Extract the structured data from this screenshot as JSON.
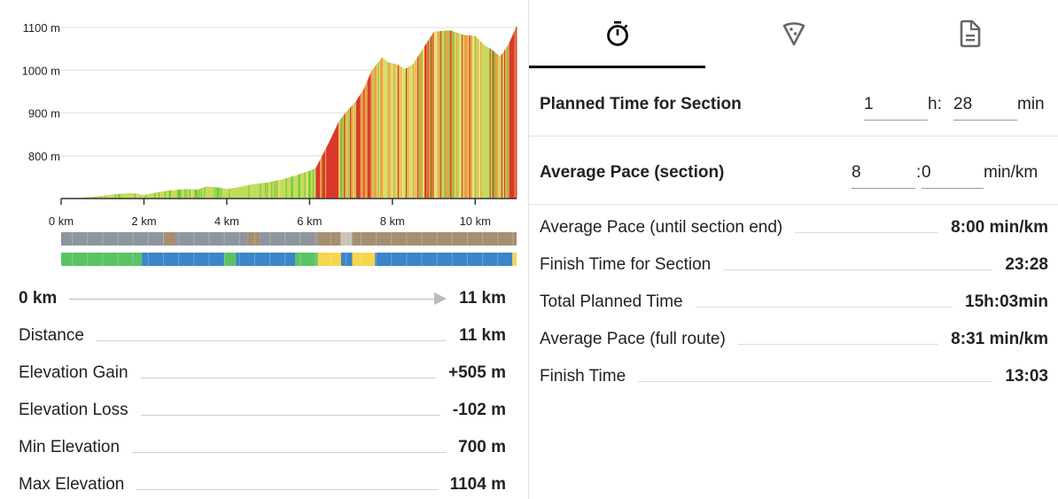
{
  "chart_data": {
    "type": "area",
    "title": "",
    "xlabel": "",
    "ylabel": "",
    "x_ticks": [
      "0 km",
      "2 km",
      "4 km",
      "6 km",
      "8 km",
      "10 km"
    ],
    "y_ticks": [
      "800 m",
      "900 m",
      "1000 m",
      "1100 m"
    ],
    "xlim": [
      0,
      11
    ],
    "ylim": [
      700,
      1104
    ],
    "grid": true,
    "elevation_profile": {
      "km": [
        0,
        0.5,
        1,
        1.3,
        1.7,
        2,
        2.3,
        2.6,
        3,
        3.3,
        3.5,
        3.8,
        4,
        4.3,
        4.6,
        5,
        5.3,
        5.7,
        6,
        6.15,
        6.3,
        6.5,
        6.7,
        6.9,
        7.1,
        7.3,
        7.5,
        7.75,
        7.9,
        8.1,
        8.3,
        8.5,
        8.7,
        9,
        9.2,
        9.4,
        9.7,
        10,
        10.2,
        10.4,
        10.6,
        10.8,
        11
      ],
      "elevation_m": [
        700,
        702,
        706,
        710,
        713,
        708,
        714,
        719,
        722,
        721,
        728,
        726,
        722,
        727,
        733,
        738,
        744,
        755,
        765,
        772,
        800,
        838,
        880,
        905,
        925,
        955,
        1000,
        1030,
        1018,
        1014,
        1003,
        1015,
        1045,
        1090,
        1092,
        1093,
        1083,
        1080,
        1060,
        1048,
        1032,
        1060,
        1104
      ]
    },
    "gradient_colors": {
      "flat": "#72c93f",
      "easy": "#c3dc5d",
      "moderate": "#f3de7a",
      "steep": "#e8a24a",
      "very_steep": "#d9392b"
    },
    "surface_bar": [
      {
        "from": 0,
        "to": 2.48,
        "color": "#8e959c"
      },
      {
        "from": 2.48,
        "to": 2.78,
        "color": "#a58f70"
      },
      {
        "from": 2.78,
        "to": 4.5,
        "color": "#8e959c"
      },
      {
        "from": 4.5,
        "to": 4.8,
        "color": "#a58f70"
      },
      {
        "from": 4.8,
        "to": 6.2,
        "color": "#8e959c"
      },
      {
        "from": 6.2,
        "to": 6.75,
        "color": "#a58f70"
      },
      {
        "from": 6.75,
        "to": 7.03,
        "color": "#cbc3b5"
      },
      {
        "from": 7.03,
        "to": 11,
        "color": "#a58f70"
      }
    ],
    "way_type_bar": [
      {
        "from": 0,
        "to": 1.95,
        "color": "#5ac463"
      },
      {
        "from": 1.95,
        "to": 3.94,
        "color": "#3b85c9"
      },
      {
        "from": 3.94,
        "to": 4.22,
        "color": "#5ac463"
      },
      {
        "from": 4.22,
        "to": 5.65,
        "color": "#3b85c9"
      },
      {
        "from": 5.65,
        "to": 6.2,
        "color": "#5ac463"
      },
      {
        "from": 6.2,
        "to": 6.76,
        "color": "#f6d64a"
      },
      {
        "from": 6.76,
        "to": 7.03,
        "color": "#3b85c9"
      },
      {
        "from": 7.03,
        "to": 7.58,
        "color": "#f6d64a"
      },
      {
        "from": 7.58,
        "to": 10.9,
        "color": "#3b85c9"
      },
      {
        "from": 10.9,
        "to": 11,
        "color": "#f6d64a"
      }
    ]
  },
  "range": {
    "start": "0 km",
    "end": "11 km"
  },
  "stats": [
    {
      "label": "Distance",
      "value": "11 km"
    },
    {
      "label": "Elevation Gain",
      "value": "+505 m"
    },
    {
      "label": "Elevation Loss",
      "value": "-102 m"
    },
    {
      "label": "Min Elevation",
      "value": "700 m"
    },
    {
      "label": "Max Elevation",
      "value": "1104 m"
    }
  ],
  "tabs": [
    {
      "icon": "stopwatch-icon",
      "active": true
    },
    {
      "icon": "pizza-slice-icon",
      "active": false
    },
    {
      "icon": "document-icon",
      "active": false
    }
  ],
  "planned_time": {
    "label": "Planned Time for Section",
    "hours": "1",
    "hours_sep": "h:",
    "minutes": "28",
    "unit": "min"
  },
  "section_pace": {
    "label": "Average Pace (section)",
    "minutes": "8",
    "sep": ":",
    "seconds": "0",
    "unit": "min/km"
  },
  "results": [
    {
      "label": "Average Pace (until section end)",
      "value": "8:00 min/km"
    },
    {
      "label": "Finish Time for Section",
      "value": "23:28"
    },
    {
      "label": "Total Planned Time",
      "value": "15h:03min"
    },
    {
      "label": "Average Pace (full route)",
      "value": "8:31 min/km"
    },
    {
      "label": "Finish Time",
      "value": "13:03"
    }
  ]
}
